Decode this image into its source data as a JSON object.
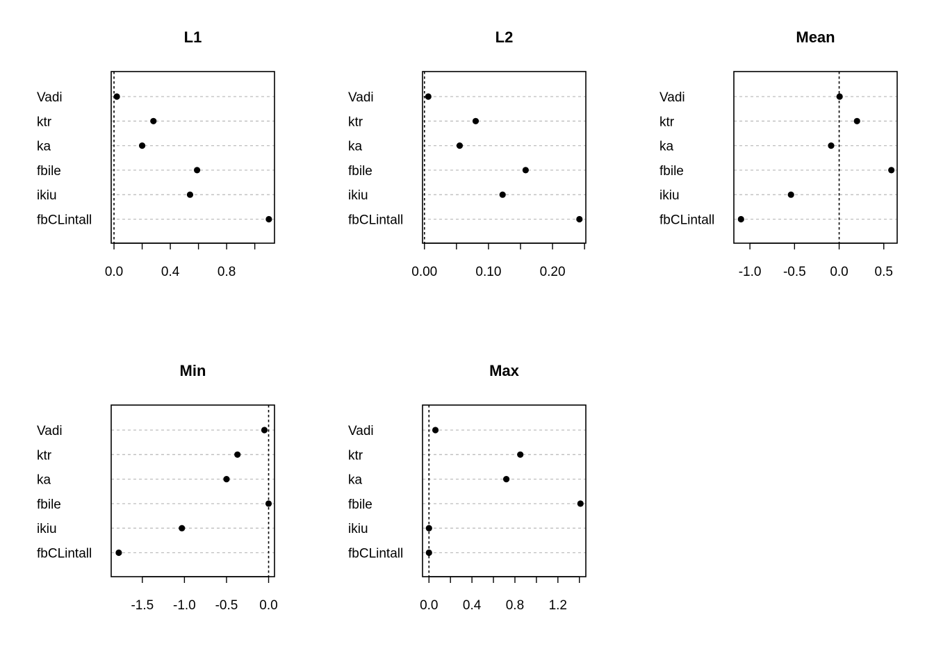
{
  "chart_data": [
    {
      "type": "scatter",
      "title": "L1",
      "categories": [
        "Vadi",
        "ktr",
        "ka",
        "fbile",
        "ikiu",
        "fbCLintall"
      ],
      "values": [
        0.02,
        0.28,
        0.2,
        0.59,
        0.54,
        1.1
      ],
      "xlim": [
        -0.02,
        1.14
      ],
      "ticks": [
        0,
        0.2,
        0.4,
        0.6,
        0.8,
        1.0
      ],
      "tick_labels": [
        "0.0",
        "",
        "0.4",
        "",
        "0.8",
        ""
      ],
      "reference_line": 0
    },
    {
      "type": "scatter",
      "title": "L2",
      "categories": [
        "Vadi",
        "ktr",
        "ka",
        "fbile",
        "ikiu",
        "fbCLintall"
      ],
      "values": [
        0.006,
        0.08,
        0.055,
        0.158,
        0.122,
        0.242
      ],
      "xlim": [
        -0.003,
        0.252
      ],
      "ticks": [
        0,
        0.05,
        0.1,
        0.15,
        0.2,
        0.25
      ],
      "tick_labels": [
        "0.00",
        "",
        "0.10",
        "",
        "0.20",
        ""
      ],
      "reference_line": 0
    },
    {
      "type": "scatter",
      "title": "Mean",
      "categories": [
        "Vadi",
        "ktr",
        "ka",
        "fbile",
        "ikiu",
        "fbCLintall"
      ],
      "values": [
        0.005,
        0.2,
        -0.09,
        0.585,
        -0.54,
        -1.1
      ],
      "xlim": [
        -1.18,
        0.65
      ],
      "ticks": [
        -1.0,
        -0.5,
        0,
        0.5
      ],
      "tick_labels": [
        "-1.0",
        "-0.5",
        "0.0",
        "0.5"
      ],
      "reference_line": 0
    },
    {
      "type": "scatter",
      "title": "Min",
      "categories": [
        "Vadi",
        "ktr",
        "ka",
        "fbile",
        "ikiu",
        "fbCLintall"
      ],
      "values": [
        -0.05,
        -0.37,
        -0.5,
        0.0,
        -1.03,
        -1.78
      ],
      "xlim": [
        -1.87,
        0.07
      ],
      "ticks": [
        -1.5,
        -1.0,
        -0.5,
        0
      ],
      "tick_labels": [
        "-1.5",
        "-1.0",
        "-0.5",
        "0.0"
      ],
      "reference_line": 0
    },
    {
      "type": "scatter",
      "title": "Max",
      "categories": [
        "Vadi",
        "ktr",
        "ka",
        "fbile",
        "ikiu",
        "fbCLintall"
      ],
      "values": [
        0.06,
        0.85,
        0.72,
        1.41,
        0.0,
        0.0
      ],
      "xlim": [
        -0.06,
        1.46
      ],
      "ticks": [
        0,
        0.2,
        0.4,
        0.6,
        0.8,
        1.0,
        1.2,
        1.4
      ],
      "tick_labels": [
        "0.0",
        "",
        "0.4",
        "",
        "0.8",
        "",
        "1.2",
        ""
      ],
      "reference_line": 0
    }
  ]
}
